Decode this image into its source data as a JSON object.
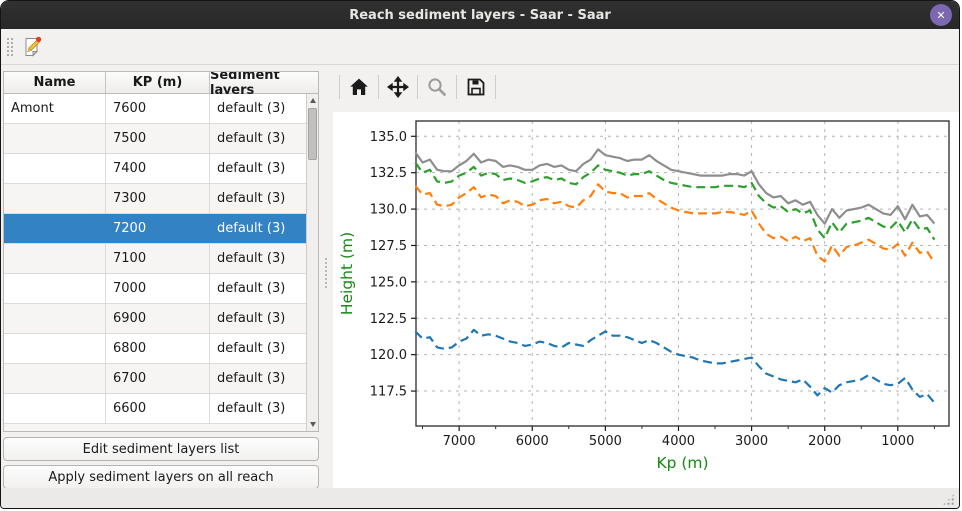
{
  "window": {
    "title": "Reach sediment layers - Saar - Saar",
    "close_glyph": "✕"
  },
  "colors": {
    "selection": "#3282c4",
    "titlebar": "#2d2d2d",
    "close_button": "#7b68b0"
  },
  "table": {
    "columns": [
      "Name",
      "KP (m)",
      "Sediment layers"
    ],
    "selected_index": 4,
    "rows": [
      {
        "name": "Amont",
        "kp": "7600",
        "layers": "default (3)"
      },
      {
        "name": "",
        "kp": "7500",
        "layers": "default (3)"
      },
      {
        "name": "",
        "kp": "7400",
        "layers": "default (3)"
      },
      {
        "name": "",
        "kp": "7300",
        "layers": "default (3)"
      },
      {
        "name": "",
        "kp": "7200",
        "layers": "default (3)"
      },
      {
        "name": "",
        "kp": "7100",
        "layers": "default (3)"
      },
      {
        "name": "",
        "kp": "7000",
        "layers": "default (3)"
      },
      {
        "name": "",
        "kp": "6900",
        "layers": "default (3)"
      },
      {
        "name": "",
        "kp": "6800",
        "layers": "default (3)"
      },
      {
        "name": "",
        "kp": "6700",
        "layers": "default (3)"
      },
      {
        "name": "",
        "kp": "6600",
        "layers": "default (3)"
      }
    ]
  },
  "buttons": {
    "edit": "Edit sediment layers list",
    "apply": "Apply sediment layers on all reach"
  },
  "plot_toolbar": {
    "icons": [
      "home",
      "pan",
      "zoom",
      "save"
    ]
  },
  "chart_data": {
    "type": "line",
    "xlabel": "Kp (m)",
    "ylabel": "Height (m)",
    "axis_label_color": "#128a12",
    "grid": true,
    "grid_color": "#b4b4b4",
    "xlim": [
      7590,
      300
    ],
    "x_reversed": true,
    "ylim": [
      115.1,
      136.05
    ],
    "xticks": [
      7000,
      6000,
      5000,
      4000,
      3000,
      2000,
      1000
    ],
    "xminor_step": 500,
    "yticks": [
      117.5,
      120.0,
      122.5,
      125.0,
      127.5,
      130.0,
      132.5,
      135.0
    ],
    "kp": [
      7600,
      7500,
      7400,
      7300,
      7200,
      7100,
      7000,
      6900,
      6800,
      6700,
      6600,
      6500,
      6400,
      6300,
      6200,
      6100,
      6000,
      5900,
      5800,
      5700,
      5600,
      5500,
      5400,
      5300,
      5200,
      5100,
      5000,
      4900,
      4800,
      4700,
      4600,
      4500,
      4400,
      4300,
      4200,
      4100,
      4000,
      3900,
      3800,
      3700,
      3600,
      3500,
      3400,
      3300,
      3200,
      3100,
      3000,
      2900,
      2800,
      2700,
      2600,
      2500,
      2400,
      2300,
      2200,
      2100,
      2000,
      1900,
      1800,
      1700,
      1600,
      1500,
      1400,
      1300,
      1200,
      1100,
      1000,
      900,
      800,
      700,
      600,
      500
    ],
    "series": [
      {
        "name": "sediment-layer-top-gray",
        "color": "#8e8e8e",
        "style": "solid",
        "y": [
          133.9,
          133.2,
          133.4,
          132.7,
          132.6,
          132.6,
          133.0,
          133.3,
          133.8,
          133.2,
          133.4,
          133.3,
          132.9,
          133.0,
          132.9,
          132.7,
          132.7,
          133.0,
          133.1,
          132.9,
          133.0,
          132.7,
          132.6,
          133.1,
          133.4,
          134.1,
          133.7,
          133.6,
          133.5,
          133.3,
          133.4,
          133.4,
          133.7,
          133.3,
          133.0,
          132.7,
          132.6,
          132.5,
          132.4,
          132.3,
          132.3,
          132.3,
          132.3,
          132.4,
          132.4,
          132.3,
          132.6,
          131.7,
          131.1,
          130.8,
          130.9,
          130.4,
          130.6,
          130.3,
          130.5,
          129.6,
          129.0,
          130.0,
          129.4,
          129.9,
          130.0,
          130.1,
          130.3,
          130.0,
          129.7,
          129.6,
          130.2,
          129.3,
          130.3,
          129.5,
          129.6,
          129.0
        ]
      },
      {
        "name": "sediment-layer-green",
        "color": "#2ca02c",
        "style": "dashed",
        "y": [
          133.2,
          132.5,
          132.7,
          131.9,
          131.8,
          131.9,
          132.3,
          132.5,
          132.9,
          132.3,
          132.5,
          132.4,
          132.0,
          132.1,
          132.0,
          131.8,
          131.9,
          132.1,
          132.2,
          132.0,
          132.1,
          131.8,
          131.7,
          132.2,
          132.5,
          133.0,
          132.7,
          132.6,
          132.5,
          132.3,
          132.4,
          132.4,
          132.6,
          132.3,
          132.0,
          131.8,
          131.7,
          131.6,
          131.5,
          131.5,
          131.5,
          131.5,
          131.6,
          131.6,
          131.6,
          131.5,
          131.8,
          130.9,
          130.4,
          130.1,
          130.2,
          129.8,
          130.0,
          129.7,
          129.9,
          128.6,
          128.0,
          129.1,
          128.4,
          129.0,
          129.1,
          129.2,
          129.4,
          129.1,
          128.8,
          128.7,
          129.2,
          128.4,
          129.3,
          128.6,
          128.7,
          127.9
        ]
      },
      {
        "name": "sediment-layer-orange",
        "color": "#ff7f0e",
        "style": "dashed",
        "y": [
          131.6,
          131.0,
          131.1,
          130.3,
          130.2,
          130.3,
          130.8,
          131.1,
          131.5,
          130.8,
          131.0,
          130.9,
          130.4,
          130.6,
          130.5,
          130.2,
          130.3,
          130.6,
          130.7,
          130.4,
          130.5,
          130.2,
          130.1,
          130.6,
          130.9,
          131.7,
          131.2,
          131.1,
          131.1,
          130.8,
          130.9,
          130.9,
          131.1,
          130.7,
          130.4,
          130.1,
          129.9,
          129.8,
          129.7,
          129.7,
          129.7,
          129.7,
          129.8,
          129.8,
          129.7,
          129.6,
          129.9,
          129.0,
          128.3,
          128.0,
          128.1,
          127.8,
          128.1,
          127.8,
          128.0,
          126.8,
          126.4,
          127.5,
          126.8,
          127.4,
          127.5,
          127.7,
          127.9,
          127.6,
          127.3,
          127.2,
          127.6,
          126.8,
          127.7,
          127.0,
          127.1,
          126.3
        ]
      },
      {
        "name": "river-bottom-blue",
        "color": "#1f77b4",
        "style": "dashed",
        "y": [
          121.6,
          121.1,
          121.2,
          120.5,
          120.4,
          120.5,
          120.9,
          121.1,
          121.7,
          121.3,
          121.4,
          121.3,
          121.1,
          120.9,
          120.8,
          120.6,
          120.7,
          120.9,
          120.8,
          120.6,
          120.5,
          120.8,
          120.7,
          120.6,
          121.0,
          121.3,
          121.6,
          121.3,
          121.3,
          121.2,
          121.0,
          120.8,
          121.0,
          120.8,
          120.5,
          120.2,
          120.0,
          119.9,
          119.8,
          119.6,
          119.5,
          119.4,
          119.4,
          119.5,
          119.6,
          119.7,
          119.8,
          119.2,
          118.7,
          118.5,
          118.3,
          118.2,
          118.1,
          118.3,
          117.8,
          117.2,
          117.7,
          117.4,
          117.9,
          118.1,
          118.2,
          118.3,
          118.6,
          118.3,
          118.0,
          117.9,
          118.0,
          118.4,
          117.6,
          117.1,
          117.3,
          116.7
        ]
      }
    ]
  }
}
